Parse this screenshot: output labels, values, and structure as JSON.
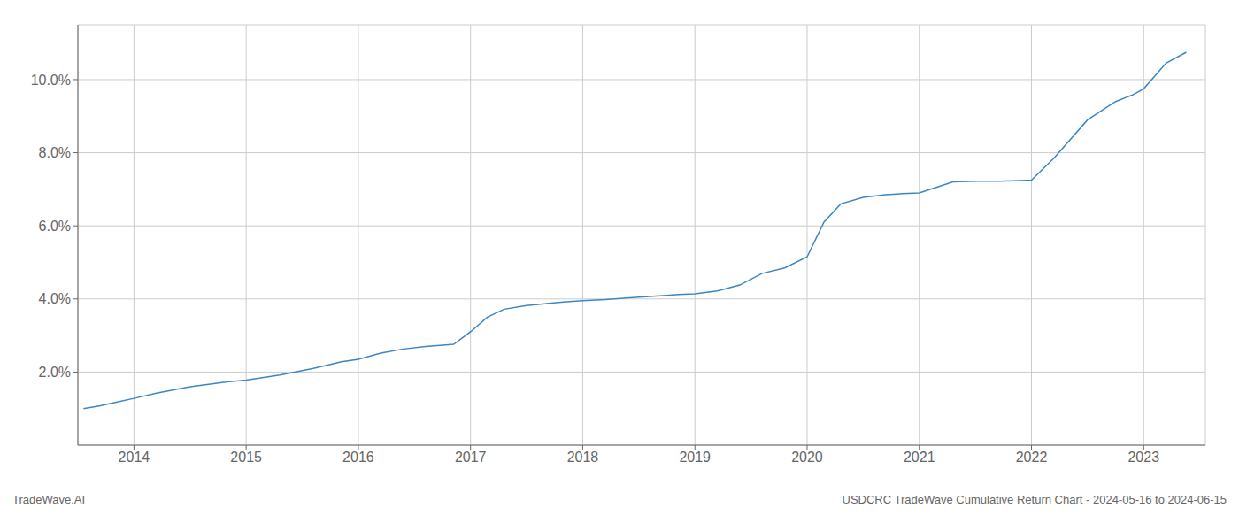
{
  "chart_data": {
    "type": "line",
    "title": "USDCRC TradeWave Cumulative Return Chart - 2024-05-16 to 2024-06-15",
    "annotations": [
      "TradeWave.AI"
    ],
    "x": [
      2013.55,
      2013.7,
      2013.85,
      2014.0,
      2014.2,
      2014.5,
      2014.8,
      2015.0,
      2015.3,
      2015.6,
      2015.85,
      2016.0,
      2016.2,
      2016.4,
      2016.6,
      2016.85,
      2017.0,
      2017.15,
      2017.3,
      2017.5,
      2017.7,
      2017.85,
      2018.0,
      2018.2,
      2018.5,
      2018.75,
      2018.9,
      2019.0,
      2019.2,
      2019.4,
      2019.6,
      2019.8,
      2020.0,
      2020.15,
      2020.3,
      2020.5,
      2020.7,
      2020.85,
      2021.0,
      2021.15,
      2021.3,
      2021.5,
      2021.7,
      2021.85,
      2022.0,
      2022.2,
      2022.5,
      2022.75,
      2022.9,
      2023.0,
      2023.2,
      2023.38
    ],
    "values": [
      1.0,
      1.08,
      1.18,
      1.28,
      1.42,
      1.6,
      1.72,
      1.78,
      1.92,
      2.1,
      2.28,
      2.35,
      2.52,
      2.63,
      2.7,
      2.76,
      3.1,
      3.5,
      3.72,
      3.82,
      3.88,
      3.92,
      3.95,
      3.98,
      4.05,
      4.1,
      4.13,
      4.14,
      4.22,
      4.38,
      4.7,
      4.85,
      5.15,
      6.1,
      6.6,
      6.78,
      6.85,
      6.88,
      6.9,
      7.05,
      7.2,
      7.22,
      7.22,
      7.23,
      7.25,
      7.85,
      8.9,
      9.4,
      9.58,
      9.75,
      10.45,
      10.75
    ],
    "color": "#3a86c8",
    "xlim": [
      2013.5,
      2023.55
    ],
    "xticks": [
      2014,
      2015,
      2016,
      2017,
      2018,
      2019,
      2020,
      2021,
      2022,
      2023
    ],
    "ylim": [
      0.0,
      11.5
    ],
    "yticks": [
      {
        "value": 2.0,
        "label": "2.0%"
      },
      {
        "value": 4.0,
        "label": "4.0%"
      },
      {
        "value": 6.0,
        "label": "6.0%"
      },
      {
        "value": 8.0,
        "label": "8.0%"
      },
      {
        "value": 10.0,
        "label": "10.0%"
      }
    ],
    "grid": true
  }
}
